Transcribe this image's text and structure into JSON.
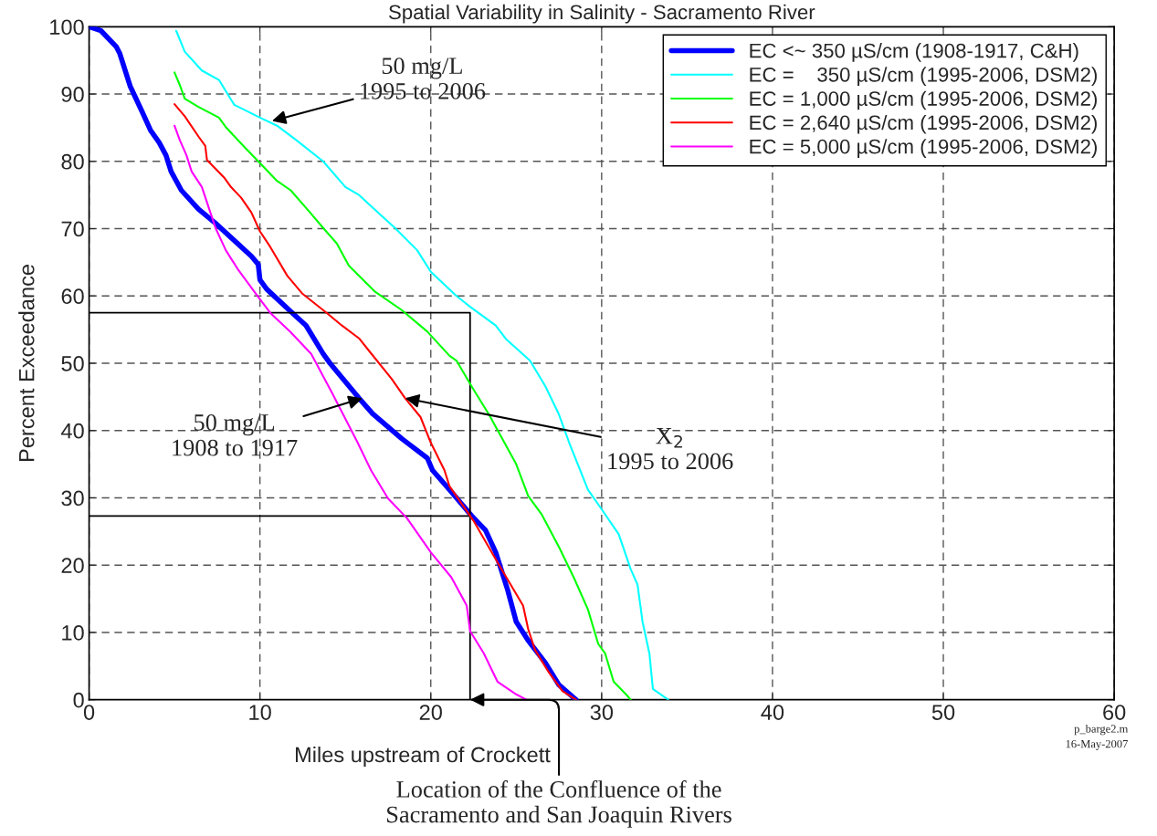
{
  "chart_data": {
    "type": "line",
    "title": "Spatial Variability in Salinity - Sacramento River",
    "xlabel": "Miles upstream of Crockett",
    "ylabel": "Percent Exceedance",
    "xlim": [
      0,
      60
    ],
    "ylim": [
      0,
      100
    ],
    "xticks": [
      0,
      10,
      20,
      30,
      40,
      50,
      60
    ],
    "yticks": [
      0,
      10,
      20,
      30,
      40,
      50,
      60,
      70,
      80,
      90,
      100
    ],
    "grid": true,
    "legend": "top right",
    "line_style": "solid",
    "series": [
      {
        "name": "EC <~ 350 µS/cm (1908-1917, C&H)",
        "color": "#0000ff",
        "x": [
          0,
          0.7,
          1.6,
          1.8,
          2.4,
          3.1,
          3.6,
          4.1,
          4.5,
          4.8,
          5.4,
          6.4,
          7.4,
          8.3,
          9.5,
          9.9,
          10,
          10.4,
          11.8,
          12.7,
          13.7,
          14.1,
          15.8,
          16.6,
          18.3,
          19.8,
          20.1,
          21.1,
          22.4,
          23.2,
          23.8,
          24.5,
          25,
          25.7,
          26.7,
          27.5,
          28.5
        ],
        "values": [
          100,
          99.4,
          97,
          96,
          91.2,
          87.4,
          84.6,
          82.8,
          80.9,
          78.5,
          75.7,
          72.9,
          70.8,
          68.7,
          65.9,
          64.7,
          62.4,
          61,
          57.7,
          55.6,
          51.4,
          50,
          44.8,
          42.5,
          38.8,
          35.9,
          34.1,
          31.2,
          27.3,
          25.2,
          21.9,
          16.3,
          11.6,
          8.8,
          5.5,
          2.2,
          0
        ]
      },
      {
        "name": "EC =    350 µS/cm (1995-2006, DSM2)",
        "color": "#00ffff",
        "x": [
          5.1,
          5.6,
          6.6,
          7.6,
          8.5,
          10,
          11,
          12.1,
          13.7,
          15,
          15.8,
          16.7,
          17.9,
          19.2,
          20,
          21.5,
          22.3,
          23.8,
          24.4,
          25.8,
          26.7,
          27.5,
          28.1,
          29.2,
          30,
          31,
          31.7,
          32.1,
          32.4,
          32.8,
          33,
          33.9
        ],
        "values": [
          99.4,
          96.3,
          93.5,
          92.1,
          88.4,
          86.5,
          85.3,
          83.2,
          80,
          76.2,
          75,
          72.9,
          70.1,
          66.8,
          63.6,
          60,
          58.4,
          55.6,
          53.6,
          50.4,
          46.6,
          42.4,
          38.2,
          31.2,
          28.3,
          24.6,
          19.4,
          17.1,
          11.5,
          6.8,
          1.6,
          0
        ]
      },
      {
        "name": "EC = 1,000 µS/cm (1995-2006, DSM2)",
        "color": "#00ff00",
        "x": [
          5,
          5.3,
          5.6,
          6.4,
          7.6,
          8,
          9.1,
          9.9,
          11,
          11.8,
          12.9,
          13.7,
          14.5,
          15.2,
          16.7,
          18.3,
          19.8,
          21.1,
          21.5,
          22.5,
          23.4,
          24.2,
          25,
          25.7,
          26.5,
          27.5,
          28.4,
          29.2,
          29.8,
          30.2,
          30.7,
          31.5,
          31.7
        ],
        "values": [
          93.2,
          91.4,
          89.3,
          88.1,
          86.5,
          85.1,
          82.1,
          80,
          77.1,
          75.7,
          72.5,
          70.1,
          67.8,
          64.5,
          60.7,
          57.9,
          54.7,
          51.1,
          50.4,
          46.1,
          42.4,
          38.7,
          35,
          30.3,
          27.5,
          22.7,
          18,
          13.4,
          8.3,
          6.9,
          2.7,
          0.6,
          0
        ]
      },
      {
        "name": "EC = 2,640 µS/cm (1995-2006, DSM2)",
        "color": "#ff0000",
        "x": [
          5,
          5.6,
          6.4,
          6.8,
          6.9,
          7.9,
          8.3,
          8.9,
          9.5,
          10,
          10.6,
          11.6,
          12.5,
          13.9,
          14.8,
          15.8,
          16.4,
          17.7,
          18.5,
          19.4,
          20,
          20.8,
          21.1,
          22.5,
          24,
          25.4,
          25.7,
          26.1,
          26.9,
          27.7,
          28.5
        ],
        "values": [
          88.5,
          86.7,
          83.7,
          82.3,
          80.2,
          77.6,
          76.2,
          74.6,
          72.4,
          69.6,
          67.3,
          63,
          60.3,
          57.5,
          55.6,
          53.7,
          51.8,
          47.7,
          44.8,
          42,
          38.2,
          34.1,
          31.7,
          26.6,
          20,
          14,
          10.5,
          7.4,
          4.1,
          1.3,
          0
        ]
      },
      {
        "name": "EC = 5,000 µS/cm (1995-2006, DSM2)",
        "color": "#ff00ff",
        "x": [
          5,
          5.3,
          5.7,
          6,
          6.6,
          7.1,
          7.4,
          8,
          8.7,
          9.8,
          10.6,
          11.8,
          13,
          14.2,
          15.7,
          16.5,
          17.5,
          18.6,
          20,
          21.2,
          22.1,
          22.3,
          23.1,
          23.9,
          25,
          25.6
        ],
        "values": [
          85.3,
          83.2,
          80.9,
          78.5,
          76.2,
          72.4,
          70.1,
          66.8,
          64,
          60.2,
          57.5,
          54.6,
          51.4,
          45.7,
          38.3,
          34.1,
          29.9,
          27,
          21.9,
          18.2,
          14,
          10.2,
          6.9,
          2.7,
          0.8,
          0
        ]
      },
      {
        "color": "#000000",
        "x": [
          0,
          22.3,
          22.3
        ],
        "values": [
          57.5,
          57.5,
          0
        ]
      },
      {
        "color": "#000000",
        "x": [
          0,
          22.3
        ],
        "values": [
          27.3,
          27.3
        ]
      }
    ],
    "annotations": [
      {
        "text": "50 mg/L\n1995 to 2006",
        "x": 10.7,
        "y": 86
      },
      {
        "text": "50 mg/L\n1908 to 1917",
        "x": 16,
        "y": 44.8
      },
      {
        "text": "X$_{2}$\n1995 to 2006",
        "x": 18.5,
        "y": 44.8
      },
      {
        "text": "Location of the Confluence of the\nSacramento and San Joaquin Rivers",
        "x": 22.3,
        "y": 0
      },
      "p_barge2.m\n16-May-2007"
    ]
  }
}
